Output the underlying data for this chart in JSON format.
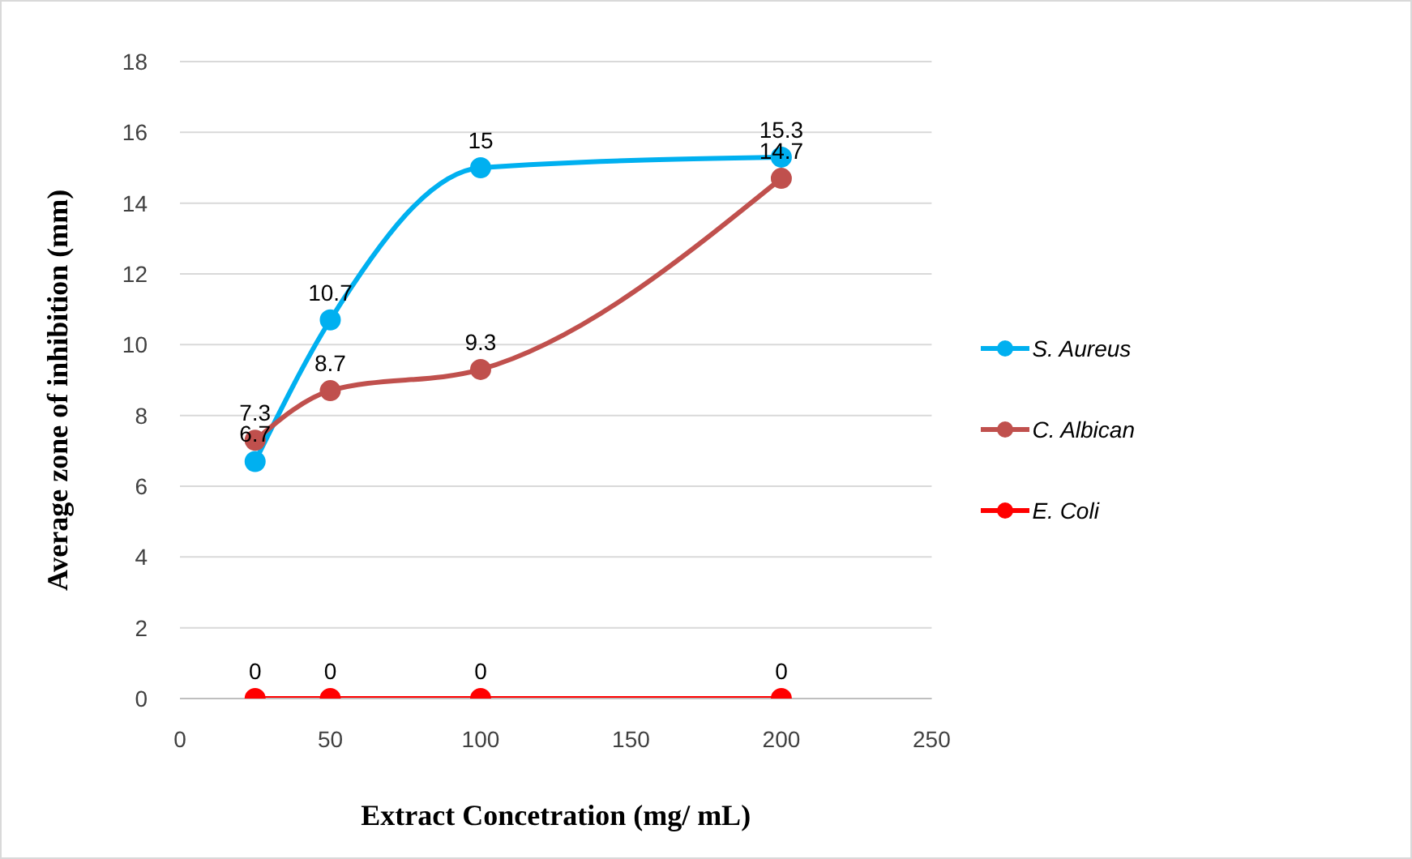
{
  "chart_data": {
    "type": "line",
    "xlabel": "Extract  Concetration (mg/ mL)",
    "ylabel": "Average zone of inhibition (mm)",
    "x": [
      25,
      50,
      100,
      200
    ],
    "series": [
      {
        "name": "S. Aureus",
        "color": "#00b0f0",
        "values": [
          6.7,
          10.7,
          15,
          15.3
        ]
      },
      {
        "name": "C. Albican",
        "color": "#c0504d",
        "values": [
          7.3,
          8.7,
          9.3,
          14.7
        ]
      },
      {
        "name": "E. Coli",
        "color": "#ff0000",
        "values": [
          0,
          0,
          0,
          0
        ]
      }
    ],
    "xlim": [
      0,
      250
    ],
    "xticks": [
      0,
      50,
      100,
      150,
      200,
      250
    ],
    "ylim": [
      0,
      18
    ],
    "yticks": [
      0,
      2,
      4,
      6,
      8,
      10,
      12,
      14,
      16,
      18
    ],
    "grid": "y",
    "legend": "right",
    "marker": "circle",
    "line_style": "solid",
    "data_labels": true
  }
}
